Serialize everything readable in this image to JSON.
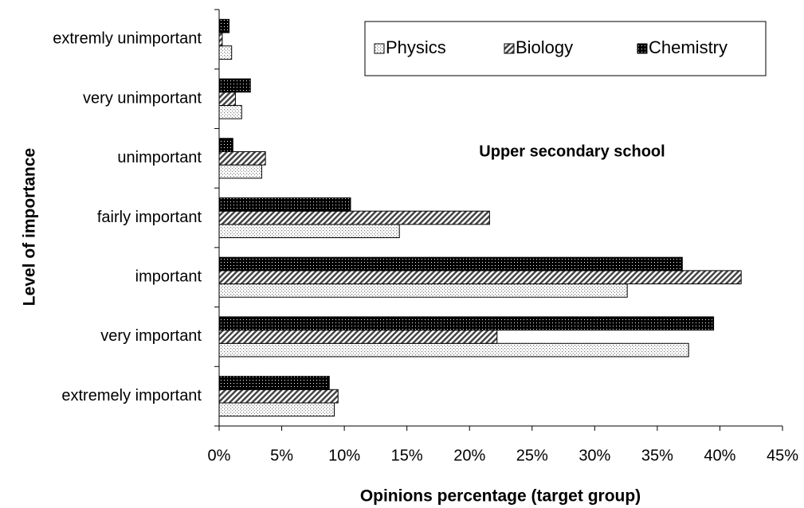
{
  "chart_data": {
    "type": "hbar",
    "annotation": "Upper secondary school",
    "x_label": "Opinions percentage (target group)",
    "y_label": "Level of importance",
    "categories": [
      "extremly unimportant",
      "very unimportant",
      "unimportant",
      "fairly important",
      "important",
      "very important",
      "extremely important"
    ],
    "series": [
      {
        "name": "Physics",
        "pattern": "light-dots",
        "color": "#ffffff",
        "values": [
          1.0,
          1.8,
          3.4,
          14.4,
          32.6,
          37.5,
          9.2
        ]
      },
      {
        "name": "Biology",
        "pattern": "hatch",
        "color": "#808080",
        "values": [
          0.25,
          1.3,
          3.7,
          21.6,
          41.7,
          22.2,
          9.5
        ]
      },
      {
        "name": "Chemistry",
        "pattern": "dark-dots",
        "color": "#000000",
        "values": [
          0.8,
          2.5,
          1.1,
          10.5,
          37.0,
          39.5,
          8.8
        ]
      }
    ],
    "xlim": [
      0,
      45
    ],
    "xticks": [
      {
        "value": 0,
        "label": "0%"
      },
      {
        "value": 5,
        "label": "5%"
      },
      {
        "value": 10,
        "label": "10%"
      },
      {
        "value": 15,
        "label": "15%"
      },
      {
        "value": 20,
        "label": "20%"
      },
      {
        "value": 25,
        "label": "25%"
      },
      {
        "value": 30,
        "label": "30%"
      },
      {
        "value": 35,
        "label": "35%"
      },
      {
        "value": 40,
        "label": "40%"
      },
      {
        "value": 45,
        "label": "45%"
      }
    ],
    "legend": "top-right",
    "grid": false
  }
}
